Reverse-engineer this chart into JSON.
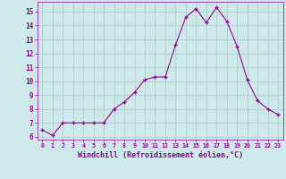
{
  "x": [
    0,
    1,
    2,
    3,
    4,
    5,
    6,
    7,
    8,
    9,
    10,
    11,
    12,
    13,
    14,
    15,
    16,
    17,
    18,
    19,
    20,
    21,
    22,
    23
  ],
  "y": [
    6.5,
    6.1,
    7.0,
    7.0,
    7.0,
    7.0,
    7.0,
    8.0,
    8.5,
    9.2,
    10.1,
    10.3,
    10.3,
    12.6,
    14.6,
    15.2,
    14.2,
    15.3,
    14.3,
    12.5,
    10.1,
    8.6,
    8.0,
    7.6
  ],
  "line_color": "#990099",
  "marker": "+",
  "bg_color": "#cce8e8",
  "grid_color": "#aacccc",
  "xlabel": "Windchill (Refroidissement éolien,°C)",
  "xlabel_color": "#990099",
  "tick_color": "#990099",
  "ylim": [
    5.8,
    15.7
  ],
  "yticks": [
    6,
    7,
    8,
    9,
    10,
    11,
    12,
    13,
    14,
    15
  ],
  "xlim": [
    -0.5,
    23.5
  ],
  "xticks": [
    0,
    1,
    2,
    3,
    4,
    5,
    6,
    7,
    8,
    9,
    10,
    11,
    12,
    13,
    14,
    15,
    16,
    17,
    18,
    19,
    20,
    21,
    22,
    23
  ]
}
